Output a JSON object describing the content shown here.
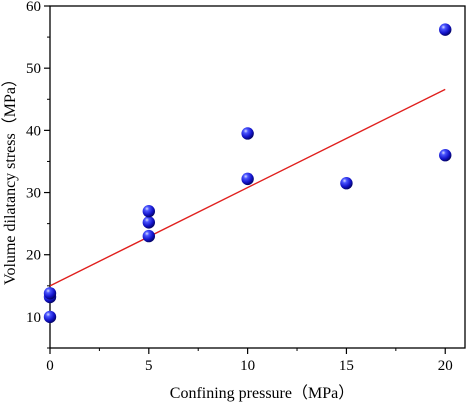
{
  "chart_data": {
    "type": "scatter",
    "xlabel": "Confining pressure（MPa）",
    "ylabel": "Volume dilatancy stress（MPa）",
    "xlim": [
      0,
      21
    ],
    "ylim": [
      5,
      60
    ],
    "xticks": [
      0,
      5,
      10,
      15,
      20
    ],
    "yticks": [
      10,
      20,
      30,
      40,
      50,
      60
    ],
    "grid": false,
    "series": [
      {
        "marker": "sphere",
        "color": "#1a1acc",
        "points": [
          {
            "x": 0,
            "y": 10.0
          },
          {
            "x": 0,
            "y": 13.2
          },
          {
            "x": 0,
            "y": 13.8
          },
          {
            "x": 5,
            "y": 23.0
          },
          {
            "x": 5,
            "y": 25.2
          },
          {
            "x": 5,
            "y": 27.0
          },
          {
            "x": 10,
            "y": 32.2
          },
          {
            "x": 10,
            "y": 39.5
          },
          {
            "x": 15,
            "y": 31.5
          },
          {
            "x": 20,
            "y": 36.0
          },
          {
            "x": 20,
            "y": 56.2
          }
        ]
      }
    ],
    "fit_line": {
      "color": "#e0201e",
      "x": [
        0,
        20
      ],
      "y": [
        15.0,
        46.6
      ]
    }
  }
}
